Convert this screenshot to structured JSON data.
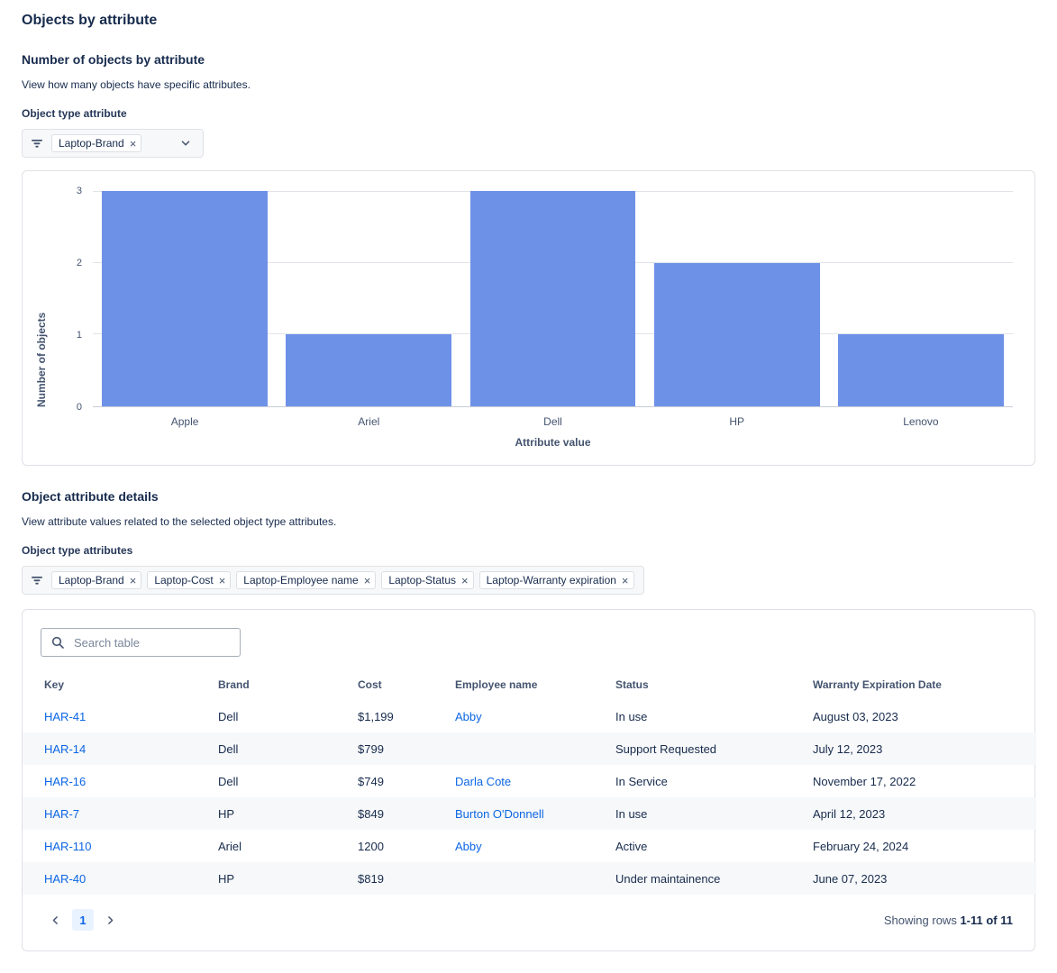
{
  "page": {
    "title": "Objects by attribute"
  },
  "colors": {
    "bar": "#6E91E8",
    "link": "#0C66E4",
    "pagination_active_bg": "#E9F2FF"
  },
  "chart_section": {
    "heading": "Number of objects by attribute",
    "description": "View how many objects have specific attributes.",
    "filter_label": "Object type attribute",
    "filter_tags": [
      "Laptop-Brand"
    ]
  },
  "chart_data": {
    "type": "bar",
    "title": "",
    "categories": [
      "Apple",
      "Ariel",
      "Dell",
      "HP",
      "Lenovo"
    ],
    "values": [
      3,
      1,
      3,
      2,
      1
    ],
    "xlabel": "Attribute value",
    "ylabel": "Number of objects",
    "ylim": [
      0,
      3
    ],
    "yticks": [
      0,
      1,
      2,
      3
    ],
    "grid": true,
    "legend": false
  },
  "details_section": {
    "heading": "Object attribute details",
    "description": "View attribute values related to the selected object type attributes.",
    "filter_label": "Object type attributes",
    "filter_tags": [
      "Laptop-Brand",
      "Laptop-Cost",
      "Laptop-Employee name",
      "Laptop-Status",
      "Laptop-Warranty expiration"
    ]
  },
  "table": {
    "search_placeholder": "Search table",
    "columns": [
      "Key",
      "Brand",
      "Cost",
      "Employee name",
      "Status",
      "Warranty Expiration Date"
    ],
    "rows": [
      {
        "key": "HAR-41",
        "brand": "Dell",
        "cost": "$1,199",
        "employee": "Abby",
        "status": "In use",
        "warranty": "August 03, 2023"
      },
      {
        "key": "HAR-14",
        "brand": "Dell",
        "cost": "$799",
        "employee": "",
        "status": "Support Requested",
        "warranty": "July 12, 2023"
      },
      {
        "key": "HAR-16",
        "brand": "Dell",
        "cost": "$749",
        "employee": "Darla Cote",
        "status": "In Service",
        "warranty": "November 17, 2022"
      },
      {
        "key": "HAR-7",
        "brand": "HP",
        "cost": "$849",
        "employee": "Burton O'Donnell",
        "status": "In use",
        "warranty": "April 12, 2023"
      },
      {
        "key": "HAR-110",
        "brand": "Ariel",
        "cost": "1200",
        "employee": "Abby",
        "status": "Active",
        "warranty": "February 24, 2024"
      },
      {
        "key": "HAR-40",
        "brand": "HP",
        "cost": "$819",
        "employee": "",
        "status": "Under maintainence",
        "warranty": "June 07, 2023"
      }
    ],
    "pagination": {
      "current_page": "1",
      "summary_prefix": "Showing rows",
      "summary_range": "1-11 of 11"
    }
  },
  "icons": {
    "remove_tag_glyph": "×"
  }
}
